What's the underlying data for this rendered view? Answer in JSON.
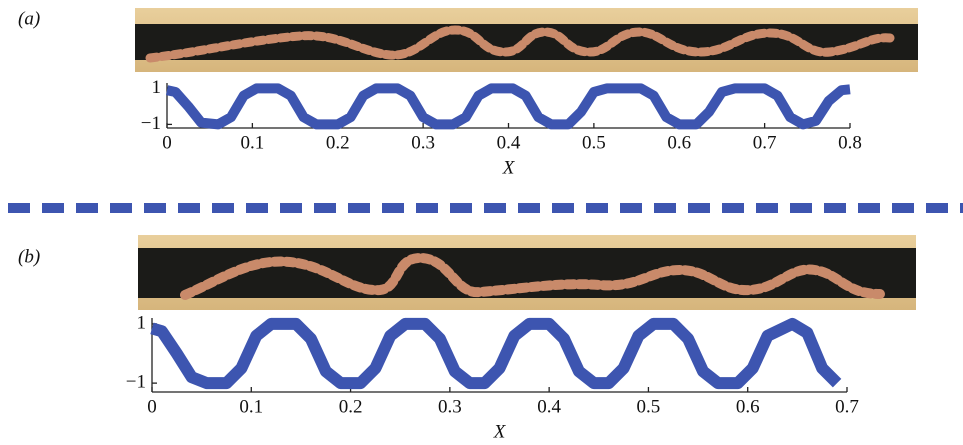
{
  "chart_data": [
    {
      "type": "line",
      "panel_label": "(a)",
      "xlabel": "X",
      "x": [
        0,
        0.01,
        0.025,
        0.04,
        0.06,
        0.075,
        0.09,
        0.105,
        0.13,
        0.145,
        0.16,
        0.175,
        0.2,
        0.215,
        0.23,
        0.245,
        0.27,
        0.285,
        0.3,
        0.315,
        0.335,
        0.35,
        0.365,
        0.38,
        0.405,
        0.42,
        0.435,
        0.45,
        0.47,
        0.485,
        0.5,
        0.515,
        0.555,
        0.57,
        0.585,
        0.6,
        0.62,
        0.635,
        0.65,
        0.665,
        0.7,
        0.715,
        0.73,
        0.745,
        0.76,
        0.775,
        0.79,
        0.8
      ],
      "values": [
        0.9,
        0.8,
        0,
        -0.9,
        -1,
        -0.6,
        0.6,
        1,
        1,
        0.6,
        -0.6,
        -1,
        -1,
        -0.6,
        0.6,
        1,
        1,
        0.6,
        -0.6,
        -1,
        -1,
        -0.6,
        0.6,
        1,
        1,
        0.6,
        -0.6,
        -1,
        -1,
        -0.3,
        0.8,
        1,
        1,
        0.6,
        -0.6,
        -1,
        -1,
        -0.3,
        0.8,
        1,
        1,
        0.6,
        -0.6,
        -1,
        -0.8,
        0.3,
        0.9,
        0.95
      ],
      "color": "#3d55b0",
      "xlim": [
        0,
        0.8
      ],
      "xticks": [
        0,
        0.1,
        0.2,
        0.3,
        0.4,
        0.5,
        0.6,
        0.7,
        0.8
      ],
      "ylim": [
        -1.2,
        1.3
      ],
      "yticks": [
        {
          "value": -1,
          "label": "−1"
        },
        1
      ]
    },
    {
      "type": "line",
      "panel_label": "(b)",
      "xlabel": "X",
      "x": [
        0,
        0.01,
        0.025,
        0.04,
        0.055,
        0.075,
        0.09,
        0.105,
        0.12,
        0.145,
        0.16,
        0.175,
        0.19,
        0.21,
        0.225,
        0.24,
        0.255,
        0.275,
        0.29,
        0.305,
        0.32,
        0.335,
        0.35,
        0.365,
        0.38,
        0.4,
        0.415,
        0.43,
        0.445,
        0.46,
        0.475,
        0.49,
        0.505,
        0.525,
        0.54,
        0.555,
        0.57,
        0.59,
        0.605,
        0.62,
        0.645,
        0.66,
        0.675,
        0.69
      ],
      "values": [
        0.85,
        0.75,
        0,
        -0.8,
        -1,
        -1,
        -0.5,
        0.6,
        1,
        1,
        0.5,
        -0.6,
        -1,
        -1,
        -0.5,
        0.6,
        1,
        1,
        0.5,
        -0.6,
        -1,
        -1,
        -0.5,
        0.6,
        1,
        1,
        0.5,
        -0.6,
        -1,
        -1,
        -0.5,
        0.6,
        1,
        1,
        0.5,
        -0.6,
        -1,
        -1,
        -0.5,
        0.6,
        1,
        0.7,
        -0.5,
        -1
      ],
      "color": "#3d55b0",
      "xlim": [
        0,
        0.7
      ],
      "xticks": [
        0,
        0.1,
        0.2,
        0.3,
        0.4,
        0.5,
        0.6,
        0.7
      ],
      "ylim": [
        -1.3,
        1.2
      ],
      "yticks": [
        {
          "value": -1,
          "label": "−1"
        },
        1
      ]
    }
  ]
}
